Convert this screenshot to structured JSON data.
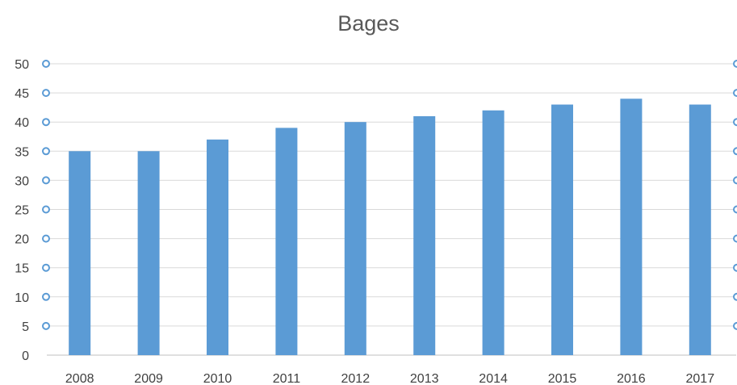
{
  "chart_data": {
    "type": "bar",
    "title": "Bages",
    "categories": [
      "2008",
      "2009",
      "2010",
      "2011",
      "2012",
      "2013",
      "2014",
      "2015",
      "2016",
      "2017"
    ],
    "values": [
      35,
      35,
      37,
      39,
      40,
      41,
      42,
      43,
      44,
      43
    ],
    "ylim": [
      0,
      50
    ],
    "yticks": [
      0,
      5,
      10,
      15,
      20,
      25,
      30,
      35,
      40,
      45,
      50
    ],
    "xlabel": "",
    "ylabel": "",
    "grid": true,
    "legend": "none",
    "bar_color": "#5b9bd5",
    "handle_color": "#5b9bd5"
  }
}
